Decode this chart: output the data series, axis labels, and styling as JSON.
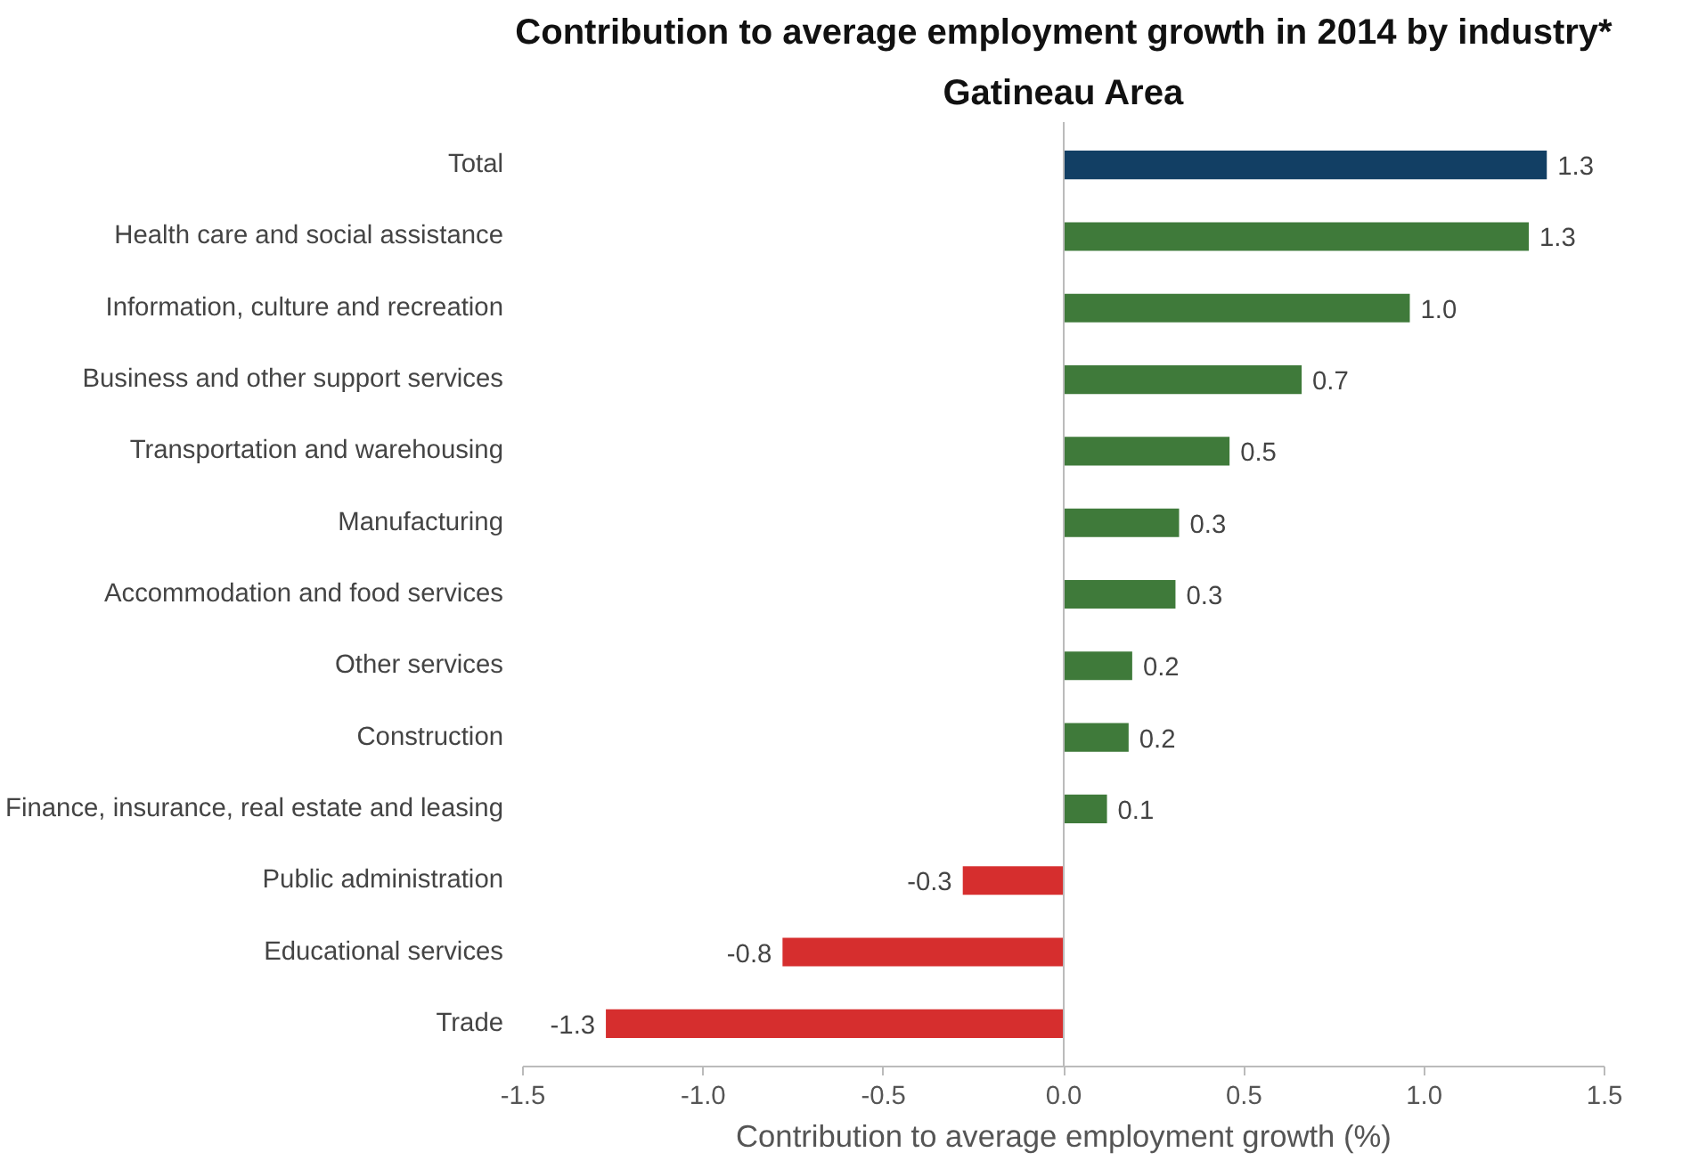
{
  "chart_data": {
    "type": "bar",
    "orientation": "horizontal",
    "title": "Contribution to average employment growth in 2014 by industry*",
    "subtitle": "Gatineau Area",
    "xlabel": "Contribution to average employment growth (%)",
    "categories": [
      "Total",
      "Health care and social assistance",
      "Information, culture and recreation",
      "Business and other support services",
      "Transportation and warehousing",
      "Manufacturing",
      "Accommodation and food services",
      "Other services",
      "Construction",
      "Finance, insurance, real estate and leasing",
      "Public administration",
      "Educational services",
      "Trade"
    ],
    "values": [
      1.34,
      1.29,
      0.96,
      0.66,
      0.46,
      0.32,
      0.31,
      0.19,
      0.18,
      0.12,
      -0.28,
      -0.78,
      -1.27
    ],
    "value_labels": [
      "1.3",
      "1.3",
      "1.0",
      "0.7",
      "0.5",
      "0.3",
      "0.3",
      "0.2",
      "0.2",
      "0.1",
      "-0.3",
      "-0.8",
      "-1.3"
    ],
    "colors": [
      "#123f64",
      "#3f7a3a",
      "#3f7a3a",
      "#3f7a3a",
      "#3f7a3a",
      "#3f7a3a",
      "#3f7a3a",
      "#3f7a3a",
      "#3f7a3a",
      "#3f7a3a",
      "#d62e2e",
      "#d62e2e",
      "#d62e2e"
    ],
    "xlim": [
      -1.5,
      1.5
    ],
    "xticks": [
      {
        "value": -1.5,
        "label": "-1.5"
      },
      {
        "value": -1,
        "label": "-1.0"
      },
      {
        "value": -0.5,
        "label": "-0.5"
      },
      {
        "value": 0,
        "label": "0.0"
      },
      {
        "value": 0.5,
        "label": "0.5"
      },
      {
        "value": 1,
        "label": "1.0"
      },
      {
        "value": 1.5,
        "label": "1.5"
      }
    ]
  }
}
